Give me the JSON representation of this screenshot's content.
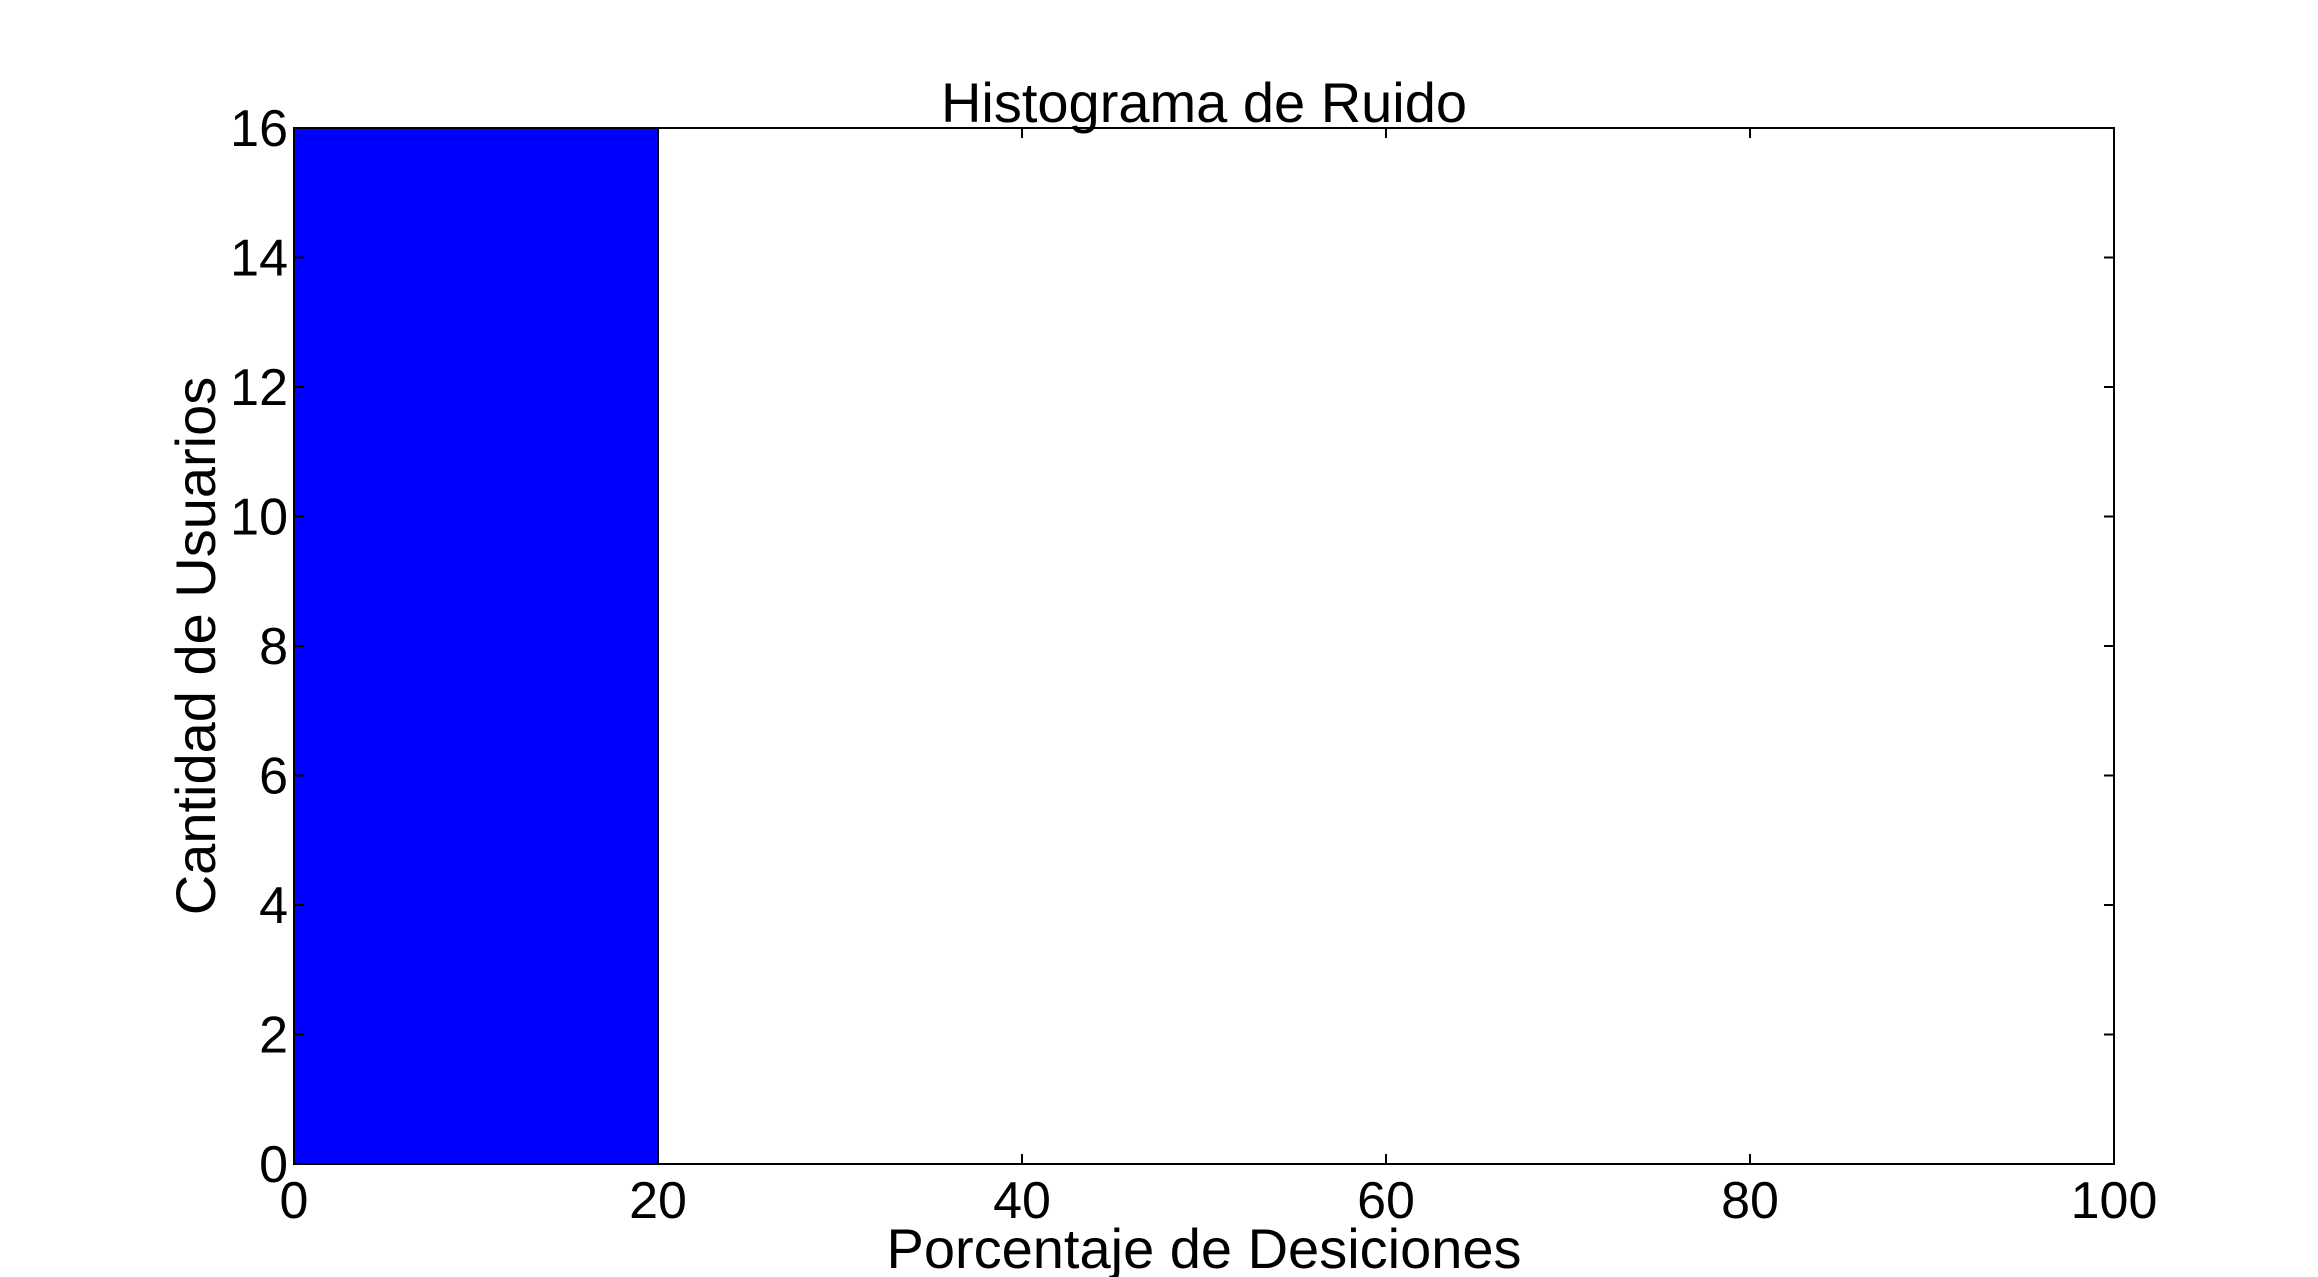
{
  "chart_data": {
    "type": "bar",
    "title": "Histograma de Ruido",
    "xlabel": "Porcentaje de Desiciones",
    "ylabel": "Cantidad de Usuarios",
    "xlim": [
      0,
      100
    ],
    "ylim": [
      0,
      16
    ],
    "xticks": [
      0,
      20,
      40,
      60,
      80,
      100
    ],
    "yticks": [
      0,
      2,
      4,
      6,
      8,
      10,
      12,
      14,
      16
    ],
    "bins": [
      {
        "x0": 0,
        "x1": 20,
        "value": 16
      }
    ],
    "bar_color": "#0000ff",
    "grid": false,
    "legend": "none"
  }
}
